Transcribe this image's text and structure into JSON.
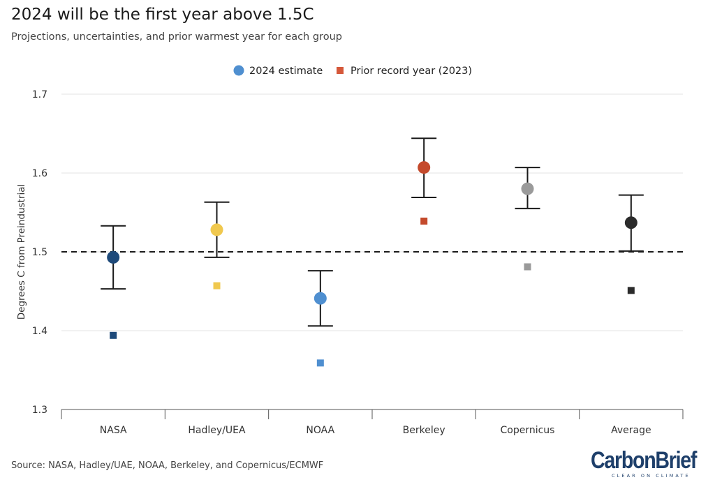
{
  "header": {
    "title": "2024 will be the first year above 1.5C",
    "subtitle": "Projections, uncertainties, and prior warmest year for each group"
  },
  "footer": {
    "source": "Source: NASA, Hadley/UAE, NOAA, Berkeley, and Copernicus/ECMWF",
    "logo_text": "CarbonBrief",
    "logo_tagline": "CLEAR ON CLIMATE"
  },
  "chart_data": {
    "type": "scatter",
    "title": "2024 will be the first year above 1.5C",
    "subtitle": "Projections, uncertainties, and prior warmest year for each group",
    "xlabel": "",
    "ylabel": "Degrees C from Preindustrial",
    "ylim": [
      1.3,
      1.7
    ],
    "yticks": [
      1.3,
      1.4,
      1.5,
      1.6,
      1.7
    ],
    "grid": "horizontal",
    "legend_position": "top-center",
    "reference_line": {
      "value": 1.5,
      "style": "dashed"
    },
    "categories": [
      "NASA",
      "Hadley/UEA",
      "NOAA",
      "Berkeley",
      "Copernicus",
      "Average"
    ],
    "colors": [
      "#1e4a7a",
      "#f0c84e",
      "#4f8fd0",
      "#c44a2c",
      "#9a9a9a",
      "#2b2b2b"
    ],
    "series": [
      {
        "name": "2024 estimate",
        "marker": "circle",
        "legend_color": "#4f8fd0",
        "values": [
          1.493,
          1.528,
          1.441,
          1.607,
          1.58,
          1.537
        ],
        "error_low": [
          1.453,
          1.493,
          1.406,
          1.569,
          1.555,
          1.501
        ],
        "error_high": [
          1.533,
          1.563,
          1.476,
          1.644,
          1.607,
          1.572
        ]
      },
      {
        "name": "Prior record year (2023)",
        "marker": "square",
        "legend_color": "#d5583a",
        "values": [
          1.394,
          1.457,
          1.359,
          1.539,
          1.481,
          1.451
        ]
      }
    ]
  }
}
